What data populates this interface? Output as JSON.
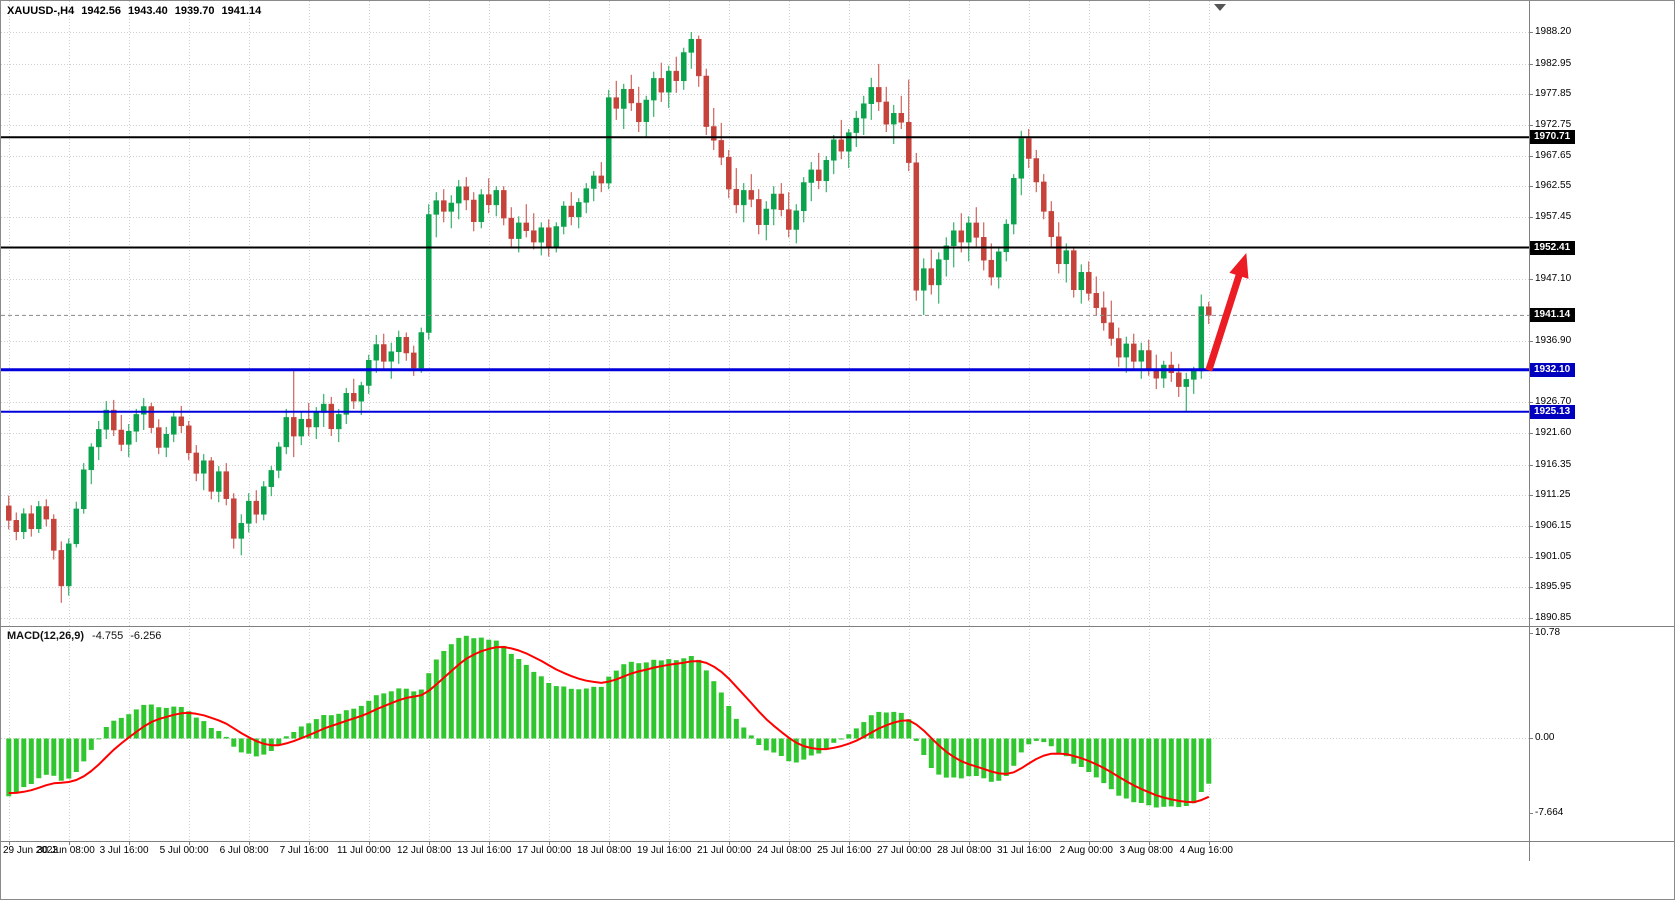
{
  "header": {
    "symbol_timeframe": "XAUUSD-,H4",
    "open": "1942.56",
    "high": "1943.40",
    "low": "1939.70",
    "close": "1941.14"
  },
  "macd": {
    "label": "MACD(12,26,9)",
    "value_macd": "-4.755",
    "value_signal": "-6.256"
  },
  "colors": {
    "bull": "#0AA24C",
    "bear": "#C5433B",
    "grid": "#CFCFCF",
    "black_level": "#000000",
    "blue_level": "#0000DC",
    "current_line": "#8A8A8A",
    "macd_hist": "#2FC62F",
    "macd_signal": "#FF0000",
    "arrow": "#EC1C24",
    "tag_text": "#FFFFFF",
    "tag_black_bg": "#000000",
    "tag_blue_bg": "#0000BE",
    "separator": "#808080",
    "axis_text": "#000000"
  },
  "chart_data": [
    {
      "type": "candlestick",
      "title": "XAUUSD- H4",
      "ylim": [
        1889.55,
        1993.35
      ],
      "price_axis_labels": [
        "1988.20",
        "1982.95",
        "1977.85",
        "1972.75",
        "1967.65",
        "1962.55",
        "1957.45",
        "1947.10",
        "1936.90",
        "1926.70",
        "1921.60",
        "1916.35",
        "1911.25",
        "1906.15",
        "1901.05",
        "1895.95",
        "1890.85"
      ],
      "levels": [
        {
          "price": 1970.71,
          "label": "1970.71",
          "style": "black",
          "width": 2
        },
        {
          "price": 1952.41,
          "label": "1952.41",
          "style": "black",
          "width": 2
        },
        {
          "price": 1932.1,
          "label": "1932.10",
          "style": "blue",
          "width": 3
        },
        {
          "price": 1925.13,
          "label": "1925.13",
          "style": "blue",
          "width": 2
        }
      ],
      "current_price": {
        "value": 1941.14,
        "label": "1941.14"
      },
      "time_labels": [
        {
          "label": "29 Jun 2023",
          "bar": 0
        },
        {
          "label": "30 Jun 08:00",
          "bar": 8
        },
        {
          "label": "3 Jul 16:00",
          "bar": 16
        },
        {
          "label": "5 Jul 00:00",
          "bar": 24
        },
        {
          "label": "6 Jul 08:00",
          "bar": 32
        },
        {
          "label": "7 Jul 16:00",
          "bar": 40
        },
        {
          "label": "11 Jul 00:00",
          "bar": 48
        },
        {
          "label": "12 Jul 08:00",
          "bar": 56
        },
        {
          "label": "13 Jul 16:00",
          "bar": 64
        },
        {
          "label": "17 Jul 00:00",
          "bar": 72
        },
        {
          "label": "18 Jul 08:00",
          "bar": 80
        },
        {
          "label": "19 Jul 16:00",
          "bar": 88
        },
        {
          "label": "21 Jul 00:00",
          "bar": 96
        },
        {
          "label": "24 Jul 08:00",
          "bar": 104
        },
        {
          "label": "25 Jul 16:00",
          "bar": 112
        },
        {
          "label": "27 Jul 00:00",
          "bar": 120
        },
        {
          "label": "28 Jul 08:00",
          "bar": 128
        },
        {
          "label": "31 Jul 16:00",
          "bar": 136
        },
        {
          "label": "2 Aug 00:00",
          "bar": 144
        },
        {
          "label": "3 Aug 08:00",
          "bar": 152
        },
        {
          "label": "4 Aug 16:00",
          "bar": 160
        }
      ],
      "arrow": {
        "start_bar": 160,
        "start_price": 1932.0,
        "end_bar": 165,
        "end_price": 1951.5
      },
      "ohlc": [
        [
          1909.5,
          1911.2,
          1905.6,
          1907.1
        ],
        [
          1907.1,
          1908.4,
          1903.8,
          1905.2
        ],
        [
          1905.2,
          1909.1,
          1904.0,
          1908.2
        ],
        [
          1908.2,
          1909.6,
          1904.4,
          1905.7
        ],
        [
          1905.7,
          1910.3,
          1905.0,
          1909.4
        ],
        [
          1909.4,
          1910.6,
          1906.1,
          1907.3
        ],
        [
          1907.3,
          1908.1,
          1900.6,
          1902.1
        ],
        [
          1902.1,
          1903.6,
          1893.4,
          1896.2
        ],
        [
          1896.2,
          1904.1,
          1894.6,
          1903.2
        ],
        [
          1903.2,
          1910.2,
          1902.6,
          1909.0
        ],
        [
          1909.0,
          1916.6,
          1908.2,
          1915.5
        ],
        [
          1915.5,
          1919.9,
          1913.1,
          1919.3
        ],
        [
          1919.3,
          1923.6,
          1917.1,
          1922.2
        ],
        [
          1922.2,
          1926.9,
          1920.6,
          1925.4
        ],
        [
          1925.4,
          1927.1,
          1921.1,
          1922.1
        ],
        [
          1922.1,
          1924.6,
          1918.6,
          1919.7
        ],
        [
          1919.7,
          1923.1,
          1917.6,
          1921.9
        ],
        [
          1921.9,
          1925.6,
          1920.1,
          1924.7
        ],
        [
          1924.7,
          1927.4,
          1922.1,
          1926.0
        ],
        [
          1926.0,
          1926.6,
          1921.6,
          1922.5
        ],
        [
          1922.5,
          1923.9,
          1918.1,
          1919.2
        ],
        [
          1919.2,
          1922.6,
          1917.6,
          1921.4
        ],
        [
          1921.4,
          1925.1,
          1920.1,
          1924.3
        ],
        [
          1924.3,
          1926.1,
          1921.6,
          1922.8
        ],
        [
          1922.8,
          1923.6,
          1917.1,
          1918.3
        ],
        [
          1918.3,
          1919.6,
          1913.6,
          1914.9
        ],
        [
          1914.9,
          1918.1,
          1912.1,
          1917.0
        ],
        [
          1917.0,
          1917.6,
          1910.6,
          1911.9
        ],
        [
          1911.9,
          1916.1,
          1910.1,
          1915.2
        ],
        [
          1915.2,
          1916.6,
          1909.6,
          1910.7
        ],
        [
          1910.7,
          1911.6,
          1902.4,
          1904.1
        ],
        [
          1904.1,
          1908.1,
          1901.3,
          1906.6
        ],
        [
          1906.6,
          1911.6,
          1905.1,
          1910.3
        ],
        [
          1910.3,
          1912.1,
          1906.6,
          1908.1
        ],
        [
          1908.1,
          1913.6,
          1907.1,
          1912.7
        ],
        [
          1912.7,
          1916.1,
          1911.1,
          1915.4
        ],
        [
          1915.4,
          1920.1,
          1914.1,
          1919.3
        ],
        [
          1919.3,
          1925.6,
          1918.1,
          1924.2
        ],
        [
          1924.2,
          1932.3,
          1917.6,
          1921.1
        ],
        [
          1921.1,
          1925.1,
          1919.6,
          1923.9
        ],
        [
          1923.9,
          1926.6,
          1921.1,
          1922.6
        ],
        [
          1922.6,
          1925.9,
          1920.6,
          1925.0
        ],
        [
          1925.0,
          1928.1,
          1922.6,
          1926.4
        ],
        [
          1926.4,
          1927.6,
          1921.1,
          1922.3
        ],
        [
          1922.3,
          1925.6,
          1920.1,
          1924.7
        ],
        [
          1924.7,
          1929.1,
          1923.1,
          1928.2
        ],
        [
          1928.2,
          1930.6,
          1925.6,
          1926.9
        ],
        [
          1926.9,
          1930.1,
          1924.6,
          1929.5
        ],
        [
          1929.5,
          1934.6,
          1928.1,
          1933.7
        ],
        [
          1933.7,
          1937.9,
          1931.6,
          1936.3
        ],
        [
          1936.3,
          1938.1,
          1932.1,
          1933.5
        ],
        [
          1933.5,
          1936.6,
          1930.6,
          1935.1
        ],
        [
          1935.1,
          1938.6,
          1933.1,
          1937.5
        ],
        [
          1937.5,
          1938.3,
          1933.6,
          1934.9
        ],
        [
          1934.9,
          1936.1,
          1931.1,
          1932.4
        ],
        [
          1932.4,
          1939.1,
          1931.6,
          1938.3
        ],
        [
          1938.3,
          1959.6,
          1937.1,
          1957.9
        ],
        [
          1957.9,
          1961.6,
          1954.1,
          1960.2
        ],
        [
          1960.2,
          1962.1,
          1956.6,
          1958.4
        ],
        [
          1958.4,
          1961.1,
          1955.6,
          1959.8
        ],
        [
          1959.8,
          1963.6,
          1957.1,
          1962.5
        ],
        [
          1962.5,
          1964.1,
          1958.6,
          1960.3
        ],
        [
          1960.3,
          1961.6,
          1955.1,
          1956.7
        ],
        [
          1956.7,
          1962.1,
          1955.6,
          1961.2
        ],
        [
          1961.2,
          1963.9,
          1958.1,
          1959.5
        ],
        [
          1959.5,
          1962.6,
          1957.6,
          1961.9
        ],
        [
          1961.9,
          1962.6,
          1956.1,
          1957.3
        ],
        [
          1957.3,
          1959.1,
          1952.6,
          1953.9
        ],
        [
          1953.9,
          1957.6,
          1951.6,
          1956.5
        ],
        [
          1956.5,
          1959.6,
          1954.1,
          1955.2
        ],
        [
          1955.2,
          1958.1,
          1952.1,
          1953.3
        ],
        [
          1953.3,
          1956.6,
          1951.1,
          1955.7
        ],
        [
          1955.7,
          1957.1,
          1950.9,
          1952.4
        ],
        [
          1952.4,
          1956.6,
          1951.6,
          1955.9
        ],
        [
          1955.9,
          1960.1,
          1954.6,
          1959.3
        ],
        [
          1959.3,
          1961.6,
          1956.1,
          1957.5
        ],
        [
          1957.5,
          1960.6,
          1955.6,
          1959.9
        ],
        [
          1959.9,
          1963.1,
          1958.1,
          1962.2
        ],
        [
          1962.2,
          1965.1,
          1960.1,
          1964.3
        ],
        [
          1964.3,
          1966.6,
          1961.6,
          1963.1
        ],
        [
          1963.1,
          1978.6,
          1962.1,
          1977.3
        ],
        [
          1977.3,
          1980.1,
          1973.6,
          1975.5
        ],
        [
          1975.5,
          1979.6,
          1972.1,
          1978.7
        ],
        [
          1978.7,
          1981.1,
          1975.1,
          1976.4
        ],
        [
          1976.4,
          1979.1,
          1971.6,
          1973.3
        ],
        [
          1973.3,
          1977.6,
          1970.6,
          1976.9
        ],
        [
          1976.9,
          1981.6,
          1974.1,
          1980.5
        ],
        [
          1980.5,
          1983.1,
          1976.6,
          1978.2
        ],
        [
          1978.2,
          1982.6,
          1975.6,
          1981.7
        ],
        [
          1981.7,
          1984.1,
          1978.1,
          1980.1
        ],
        [
          1980.1,
          1985.6,
          1978.6,
          1984.8
        ],
        [
          1984.8,
          1988.2,
          1982.1,
          1987.0
        ],
        [
          1987.0,
          1987.6,
          1979.1,
          1980.9
        ],
        [
          1980.9,
          1982.1,
          1971.1,
          1972.5
        ],
        [
          1972.5,
          1975.6,
          1968.6,
          1970.2
        ],
        [
          1970.2,
          1973.1,
          1966.1,
          1967.4
        ],
        [
          1967.4,
          1968.6,
          1960.6,
          1962.1
        ],
        [
          1962.1,
          1965.6,
          1958.1,
          1959.5
        ],
        [
          1959.5,
          1963.1,
          1956.6,
          1961.9
        ],
        [
          1961.9,
          1964.6,
          1959.1,
          1960.4
        ],
        [
          1960.4,
          1962.1,
          1954.6,
          1956.2
        ],
        [
          1956.2,
          1960.1,
          1953.6,
          1958.8
        ],
        [
          1958.8,
          1962.6,
          1956.1,
          1961.3
        ],
        [
          1961.3,
          1963.1,
          1957.6,
          1958.7
        ],
        [
          1958.7,
          1961.6,
          1954.1,
          1955.4
        ],
        [
          1955.4,
          1959.6,
          1953.1,
          1958.5
        ],
        [
          1958.5,
          1964.1,
          1956.6,
          1963.2
        ],
        [
          1963.2,
          1966.6,
          1960.1,
          1965.3
        ],
        [
          1965.3,
          1968.1,
          1962.1,
          1963.5
        ],
        [
          1963.5,
          1967.6,
          1961.6,
          1966.9
        ],
        [
          1966.9,
          1971.1,
          1964.6,
          1970.3
        ],
        [
          1970.3,
          1973.6,
          1967.1,
          1968.4
        ],
        [
          1968.4,
          1972.1,
          1965.6,
          1971.5
        ],
        [
          1971.5,
          1975.1,
          1969.1,
          1973.9
        ],
        [
          1973.9,
          1977.6,
          1971.1,
          1976.3
        ],
        [
          1976.3,
          1980.6,
          1973.6,
          1979.0
        ],
        [
          1979.0,
          1982.9,
          1975.1,
          1976.6
        ],
        [
          1976.6,
          1979.1,
          1971.6,
          1972.9
        ],
        [
          1972.9,
          1976.1,
          1969.6,
          1974.7
        ],
        [
          1974.7,
          1977.6,
          1972.1,
          1973.2
        ],
        [
          1973.2,
          1980.3,
          1965.1,
          1966.5
        ],
        [
          1966.5,
          1968.1,
          1943.6,
          1945.3
        ],
        [
          1945.3,
          1950.6,
          1941.2,
          1948.9
        ],
        [
          1948.9,
          1952.1,
          1944.6,
          1946.2
        ],
        [
          1946.2,
          1951.6,
          1943.1,
          1950.4
        ],
        [
          1950.4,
          1954.1,
          1947.6,
          1952.7
        ],
        [
          1952.7,
          1956.6,
          1949.1,
          1955.2
        ],
        [
          1955.2,
          1958.1,
          1951.6,
          1953.3
        ],
        [
          1953.3,
          1957.6,
          1950.1,
          1956.5
        ],
        [
          1956.5,
          1959.1,
          1952.6,
          1954.1
        ],
        [
          1954.1,
          1956.6,
          1948.6,
          1950.3
        ],
        [
          1950.3,
          1953.1,
          1946.1,
          1947.5
        ],
        [
          1947.5,
          1952.6,
          1945.6,
          1951.7
        ],
        [
          1951.7,
          1957.1,
          1950.1,
          1956.3
        ],
        [
          1956.3,
          1964.6,
          1954.6,
          1963.9
        ],
        [
          1963.9,
          1971.8,
          1961.1,
          1970.5
        ],
        [
          1970.5,
          1972.1,
          1965.6,
          1967.2
        ],
        [
          1967.2,
          1968.6,
          1961.6,
          1963.3
        ],
        [
          1963.3,
          1964.6,
          1957.1,
          1958.4
        ],
        [
          1958.4,
          1960.1,
          1952.6,
          1954.2
        ],
        [
          1954.2,
          1956.6,
          1948.1,
          1949.7
        ],
        [
          1949.7,
          1953.1,
          1946.6,
          1951.9
        ],
        [
          1951.9,
          1952.6,
          1944.1,
          1945.4
        ],
        [
          1945.4,
          1949.6,
          1943.1,
          1948.3
        ],
        [
          1948.3,
          1950.1,
          1943.6,
          1944.8
        ],
        [
          1944.8,
          1947.6,
          1941.1,
          1942.4
        ],
        [
          1942.4,
          1945.1,
          1938.6,
          1939.9
        ],
        [
          1939.9,
          1943.6,
          1936.1,
          1937.3
        ],
        [
          1937.3,
          1939.1,
          1932.6,
          1934.2
        ],
        [
          1934.2,
          1937.6,
          1931.6,
          1936.4
        ],
        [
          1936.4,
          1938.1,
          1932.1,
          1933.5
        ],
        [
          1933.5,
          1936.6,
          1930.6,
          1935.3
        ],
        [
          1935.3,
          1937.1,
          1931.1,
          1932.2
        ],
        [
          1932.2,
          1934.6,
          1928.9,
          1930.7
        ],
        [
          1930.7,
          1933.6,
          1929.1,
          1932.9
        ],
        [
          1932.9,
          1935.1,
          1930.1,
          1931.6
        ],
        [
          1931.6,
          1933.1,
          1927.6,
          1929.3
        ],
        [
          1929.3,
          1931.6,
          1925.1,
          1930.5
        ],
        [
          1930.5,
          1932.6,
          1928.1,
          1931.9
        ],
        [
          1931.9,
          1944.6,
          1930.6,
          1942.6
        ],
        [
          1942.56,
          1943.4,
          1939.7,
          1941.14
        ]
      ]
    },
    {
      "type": "bar",
      "title": "MACD(12,26,9)",
      "source": "close",
      "ylim": [
        -10.5,
        11.5
      ],
      "axis_labels": [
        "10.78",
        "0.00",
        "-7.664"
      ],
      "current_macd": -4.755,
      "current_signal": -6.256
    }
  ]
}
